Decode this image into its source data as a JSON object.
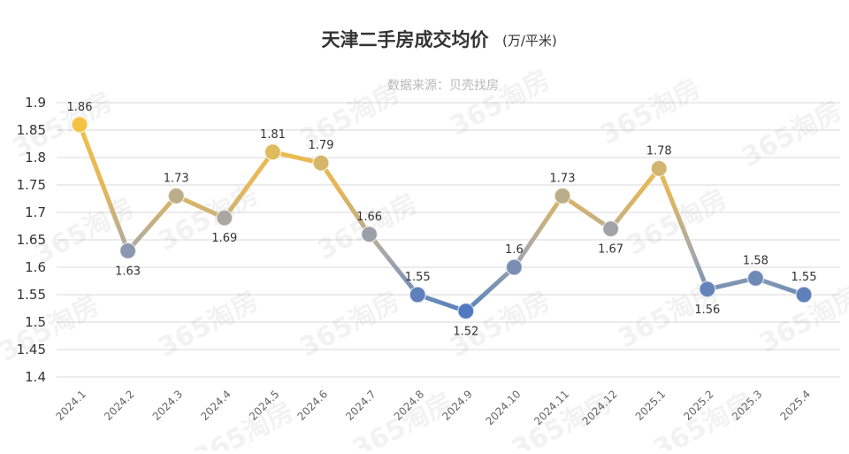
{
  "chart_data": {
    "type": "line",
    "title": "天津二手房成交均价",
    "title_unit": "(万/平米)",
    "subtitle": "数据来源：贝壳找房",
    "categories": [
      "2024.1",
      "2024.2",
      "2024.3",
      "2024.4",
      "2024.5",
      "2024.6",
      "2024.7",
      "2024.8",
      "2024.9",
      "2024.10",
      "2024.11",
      "2024.12",
      "2025.1",
      "2025.2",
      "2025.3",
      "2025.4"
    ],
    "series": [
      {
        "values": [
          1.86,
          1.63,
          1.73,
          1.69,
          1.81,
          1.79,
          1.66,
          1.55,
          1.52,
          1.6,
          1.73,
          1.67,
          1.78,
          1.56,
          1.58,
          1.55
        ]
      }
    ],
    "data_labels": [
      "1.86",
      "1.63",
      "1.73",
      "1.69",
      "1.81",
      "1.79",
      "1.66",
      "1.55",
      "1.52",
      "1.6",
      "1.73",
      "1.67",
      "1.78",
      "1.56",
      "1.58",
      "1.55"
    ],
    "yticks": [
      "1.9",
      "1.85",
      "1.8",
      "1.75",
      "1.7",
      "1.65",
      "1.6",
      "1.55",
      "1.5",
      "1.45",
      "1.4"
    ],
    "ylim": [
      1.4,
      1.9
    ],
    "grid": true,
    "legend": "none",
    "colors": {
      "high": "#f5c242",
      "mid": "#a5a5a5",
      "low": "#4472c4"
    }
  },
  "watermark": "365淘房"
}
